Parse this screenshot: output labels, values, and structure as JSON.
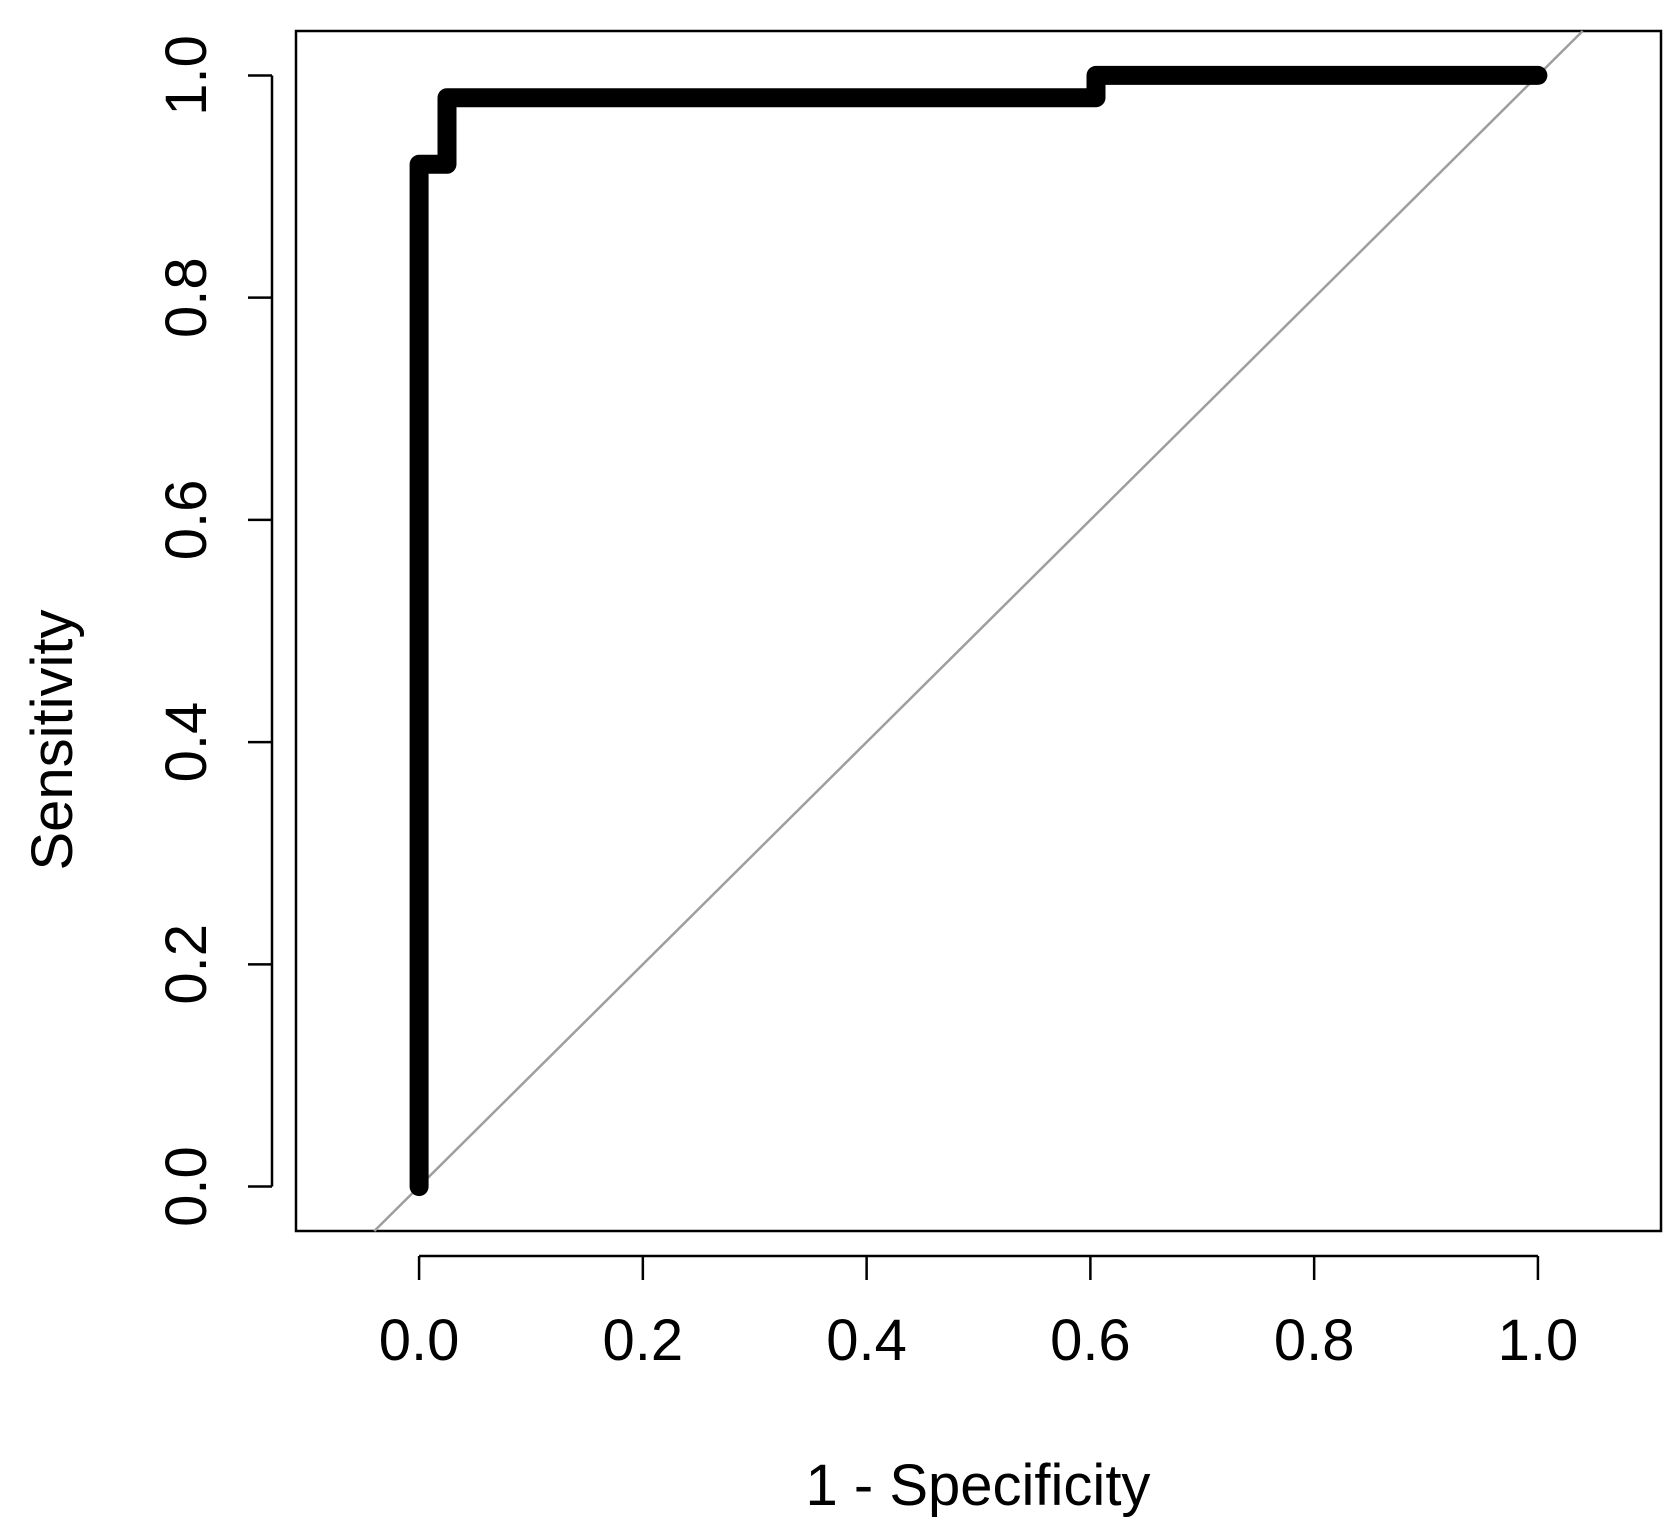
{
  "chart_data": {
    "type": "line",
    "title": "",
    "xlabel": "1 - Specificity",
    "ylabel": "Sensitivity",
    "xlim": [
      -0.11,
      1.11
    ],
    "ylim": [
      -0.04,
      1.04
    ],
    "x_ticks": [
      0.0,
      0.2,
      0.4,
      0.6,
      0.8,
      1.0
    ],
    "x_tick_labels": [
      "0.0",
      "0.2",
      "0.4",
      "0.6",
      "0.8",
      "1.0"
    ],
    "y_ticks": [
      0.0,
      0.2,
      0.4,
      0.6,
      0.8,
      1.0
    ],
    "y_tick_labels": [
      "0.0",
      "0.2",
      "0.4",
      "0.6",
      "0.8",
      "1.0"
    ],
    "grid": false,
    "legend": false,
    "series": [
      {
        "x": [
          0.0,
          0.0,
          0.025,
          0.025,
          0.605,
          0.605,
          1.0
        ],
        "y": [
          0.0,
          0.92,
          0.92,
          0.98,
          0.98,
          1.0,
          1.0
        ],
        "color": "#000000"
      }
    ],
    "reference_line": {
      "x": [
        -0.04,
        1.04
      ],
      "y": [
        -0.04,
        1.04
      ],
      "color": "#9e9e9e"
    }
  }
}
